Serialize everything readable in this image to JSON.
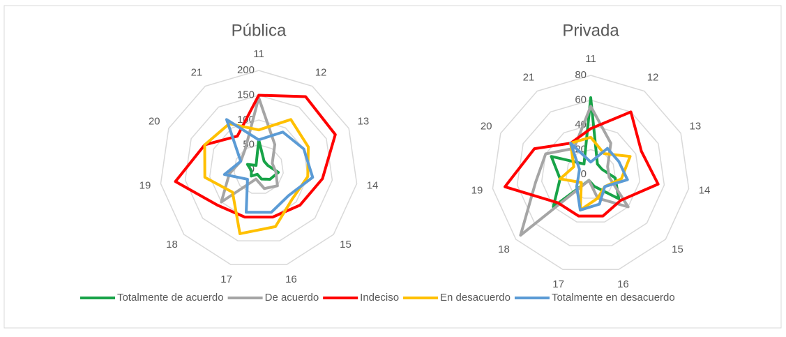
{
  "chart_data": [
    {
      "type": "radar",
      "title": "Pública",
      "categories": [
        "11",
        "12",
        "13",
        "14",
        "15",
        "16",
        "17",
        "18",
        "19",
        "20",
        "21"
      ],
      "ylim": [
        0,
        200
      ],
      "yticks": [
        0,
        50,
        100,
        150,
        200
      ],
      "grid": true,
      "series": [
        {
          "name": "Totalmente de acuerdo",
          "color": "#18a348",
          "values": [
            60,
            20,
            20,
            40,
            30,
            20,
            10,
            20,
            15,
            25,
            10
          ]
        },
        {
          "name": "De acuerdo",
          "color": "#a5a5a5",
          "values": [
            145,
            60,
            30,
            35,
            50,
            40,
            20,
            100,
            60,
            40,
            50
          ]
        },
        {
          "name": "Indeciso",
          "color": "#ff0000",
          "values": [
            150,
            175,
            170,
            130,
            110,
            100,
            100,
            110,
            170,
            120,
            80
          ]
        },
        {
          "name": "En desacuerdo",
          "color": "#ffc000",
          "values": [
            80,
            120,
            110,
            100,
            90,
            120,
            135,
            70,
            110,
            120,
            110
          ]
        },
        {
          "name": "Totalmente en desacuerdo",
          "color": "#5b9bd5",
          "values": [
            60,
            90,
            100,
            110,
            80,
            90,
            90,
            30,
            70,
            40,
            120
          ]
        }
      ]
    },
    {
      "type": "radar",
      "title": "Privada",
      "categories": [
        "11",
        "12",
        "13",
        "14",
        "15",
        "16",
        "17",
        "18",
        "19",
        "20",
        "21"
      ],
      "ylim": [
        0,
        80
      ],
      "yticks": [
        0,
        20,
        40,
        60,
        80
      ],
      "grid": true,
      "series": [
        {
          "name": "Totalmente de acuerdo",
          "color": "#18a348",
          "values": [
            62,
            10,
            10,
            20,
            30,
            10,
            5,
            40,
            25,
            35,
            10
          ]
        },
        {
          "name": "De acuerdo",
          "color": "#a5a5a5",
          "values": [
            55,
            30,
            15,
            15,
            40,
            20,
            5,
            75,
            45,
            40,
            25
          ]
        },
        {
          "name": "Indeciso",
          "color": "#ff0000",
          "values": [
            37,
            60,
            45,
            55,
            32,
            35,
            35,
            35,
            70,
            50,
            30
          ]
        },
        {
          "name": "En desacuerdo",
          "color": "#ffc000",
          "values": [
            30,
            20,
            35,
            25,
            15,
            20,
            30,
            10,
            25,
            15,
            30
          ]
        },
        {
          "name": "Totalmente en desacuerdo",
          "color": "#5b9bd5",
          "values": [
            10,
            25,
            25,
            30,
            15,
            25,
            30,
            15,
            10,
            10,
            30
          ]
        }
      ]
    }
  ]
}
